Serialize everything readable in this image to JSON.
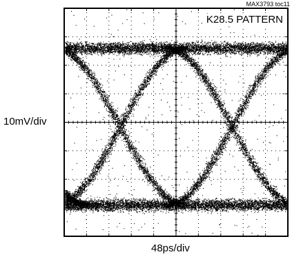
{
  "figure_id": "MAX3793 toc11",
  "chart_data": {
    "type": "eye-diagram",
    "title": "K28.5 PATTERN",
    "xlabel": "48ps/div",
    "ylabel": "10mV/div",
    "x_divisions": 10,
    "y_divisions": 8,
    "grid": true,
    "eye_crossings_div": [
      2.5,
      7.5
    ],
    "levels_div": {
      "high": 6.6,
      "low": 1.1
    },
    "colors": {
      "trace": "#000000",
      "grid": "#000000",
      "background": "#ffffff"
    }
  }
}
